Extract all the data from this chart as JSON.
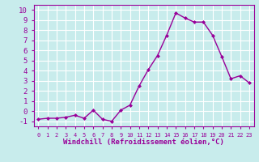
{
  "x": [
    0,
    1,
    2,
    3,
    4,
    5,
    6,
    7,
    8,
    9,
    10,
    11,
    12,
    13,
    14,
    15,
    16,
    17,
    18,
    19,
    20,
    21,
    22,
    23
  ],
  "y": [
    -0.8,
    -0.7,
    -0.7,
    -0.6,
    -0.4,
    -0.7,
    0.1,
    -0.8,
    -1.0,
    0.1,
    0.6,
    2.5,
    4.1,
    5.5,
    7.5,
    9.7,
    9.2,
    8.8,
    8.8,
    7.5,
    5.4,
    3.2,
    3.5,
    2.8
  ],
  "line_color": "#990099",
  "marker": "D",
  "markersize": 2.0,
  "linewidth": 1.0,
  "xlabel": "Windchill (Refroidissement éolien,°C)",
  "xlabel_fontsize": 6.5,
  "bg_color": "#c8ecec",
  "grid_color": "#aad4d4",
  "tick_color": "#990099",
  "label_color": "#990099",
  "spine_color": "#990099",
  "xlim": [
    -0.5,
    23.5
  ],
  "ylim": [
    -1.5,
    10.5
  ],
  "yticks": [
    -1,
    0,
    1,
    2,
    3,
    4,
    5,
    6,
    7,
    8,
    9,
    10
  ],
  "xticks": [
    0,
    1,
    2,
    3,
    4,
    5,
    6,
    7,
    8,
    9,
    10,
    11,
    12,
    13,
    14,
    15,
    16,
    17,
    18,
    19,
    20,
    21,
    22,
    23
  ],
  "ytick_fontsize": 6.5,
  "xtick_fontsize": 5.0
}
